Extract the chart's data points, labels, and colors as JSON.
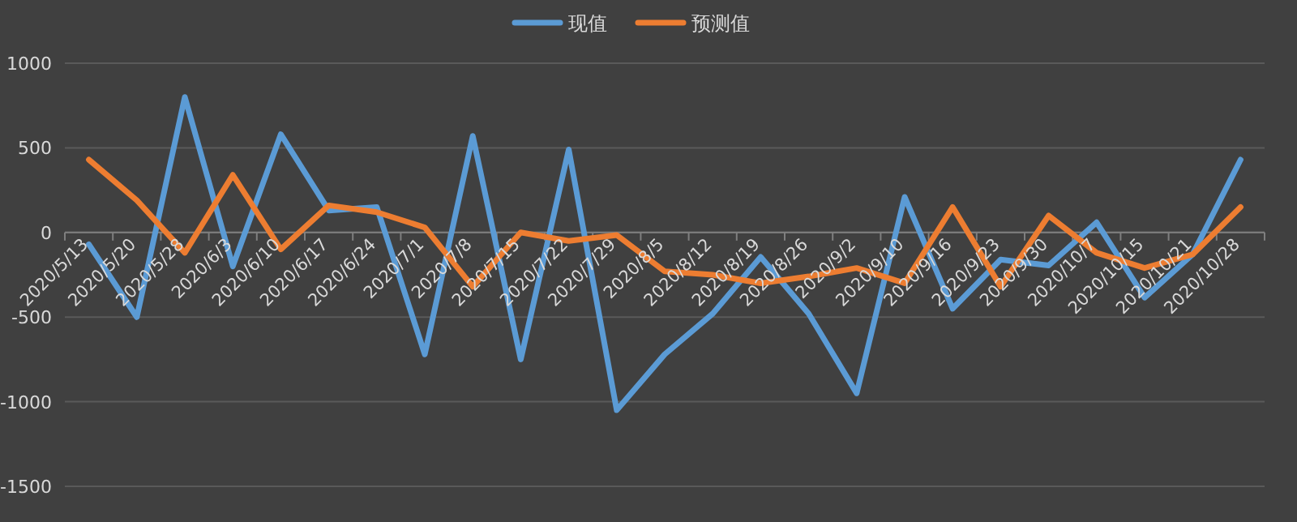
{
  "chart_data": {
    "type": "line",
    "categories": [
      "2020/5/13",
      "2020/5/20",
      "2020/5/28",
      "2020/6/3",
      "2020/6/10",
      "2020/6/17",
      "2020/6/24",
      "2020/7/1",
      "2020/7/8",
      "2020/7/15",
      "2020/7/22",
      "2020/7/29",
      "2020/8/5",
      "2020/8/12",
      "2020/8/19",
      "2020/8/26",
      "2020/9/2",
      "2020/9/10",
      "2020/9/16",
      "2020/9/23",
      "2020/9/30",
      "2020/10/7",
      "2020/10/15",
      "2020/10/21",
      "2020/10/28"
    ],
    "series": [
      {
        "name": "现值",
        "color": "#5b9bd5",
        "values": [
          -70,
          -500,
          800,
          -200,
          580,
          130,
          150,
          -720,
          570,
          -750,
          490,
          -1050,
          -720,
          -480,
          -145,
          -480,
          -950,
          210,
          -450,
          -160,
          -195,
          60,
          -385,
          -130,
          430
        ]
      },
      {
        "name": "预测值",
        "color": "#ed7d31",
        "values": [
          430,
          190,
          -120,
          340,
          -100,
          160,
          120,
          30,
          -320,
          0,
          -50,
          -15,
          -230,
          -250,
          -300,
          -260,
          -210,
          -300,
          150,
          -320,
          100,
          -120,
          -210,
          -130,
          150
        ]
      }
    ],
    "ylim": [
      -1500,
      1000
    ],
    "yticks": [
      -1500,
      -1000,
      -500,
      0,
      500,
      1000
    ],
    "grid": "y",
    "legend": "top",
    "marker": "none",
    "line_style": "solid"
  }
}
